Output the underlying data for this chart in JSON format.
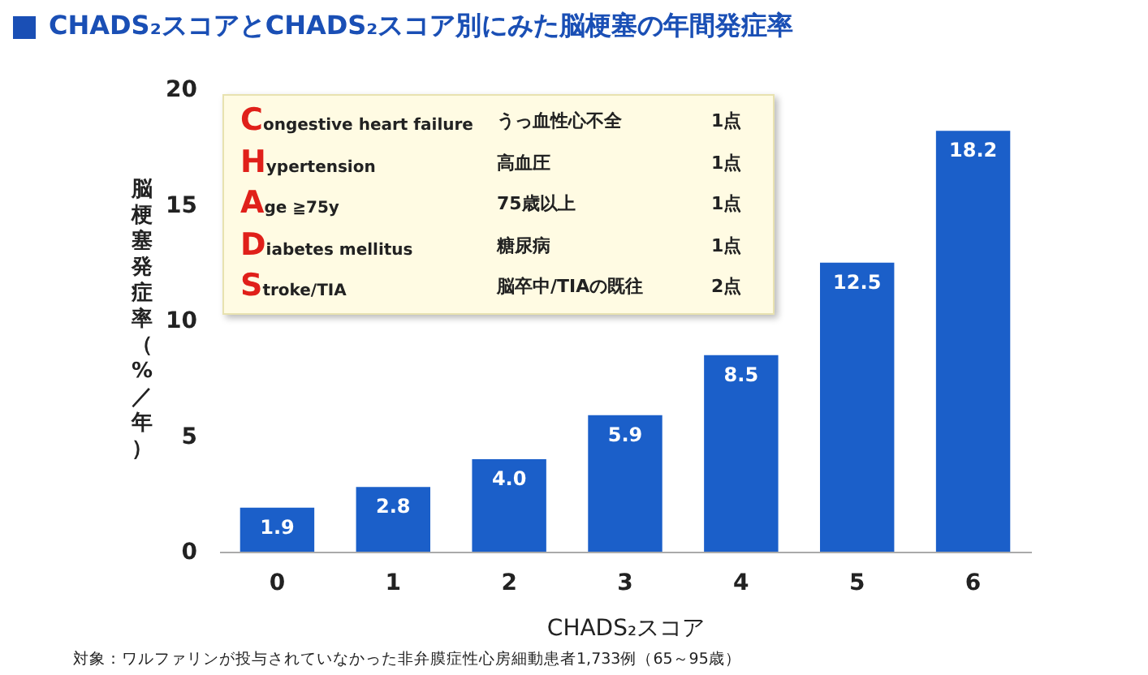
{
  "chart_data": {
    "type": "bar",
    "title": "CHADS₂スコアとCHADS₂スコア別にみた脳梗塞の年間発症率",
    "xlabel": "CHADS₂スコア",
    "ylabel": "脳梗塞発症率（%／年）",
    "categories": [
      "0",
      "1",
      "2",
      "3",
      "4",
      "5",
      "6"
    ],
    "values": [
      1.9,
      2.8,
      4.0,
      5.9,
      8.5,
      12.5,
      18.2
    ],
    "value_labels": [
      "1.9",
      "2.8",
      "4.0",
      "5.9",
      "8.5",
      "12.5",
      "18.2"
    ],
    "color": "#1b5fc9",
    "ylim": [
      0,
      20
    ],
    "yticks": [
      0,
      5,
      10,
      15,
      20
    ],
    "grid": false,
    "annotations": [
      "Congestive heart failure",
      "うっ血性心不全",
      "1点",
      "Hypertension",
      "高血圧",
      "1点",
      "Age ≧75y",
      "75歳以上",
      "1点",
      "Diabetes mellitus",
      "糖尿病",
      "1点",
      "Stroke/TIA",
      "脳卒中/TIAの既往",
      "2点",
      "対象：ワルファリンが投与されていなかった非弁膜症性心房細動患者1,733例（65～95歳）"
    ]
  }
}
